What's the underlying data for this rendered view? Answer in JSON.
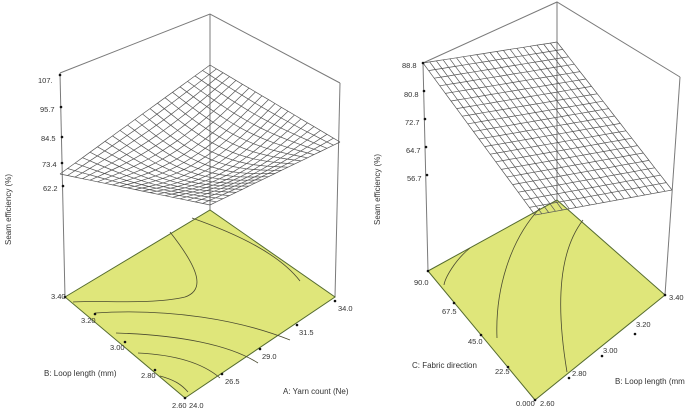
{
  "chart_data": [
    {
      "type": "surface3d",
      "title": "",
      "zlabel": "Seam efficiency (%)",
      "xlabel": "A: Yarn count (Ne)",
      "ylabel": "B: Loop length (mm)",
      "z_ticks": [
        "107.",
        "95.7",
        "84.5",
        "73.4",
        "62.2"
      ],
      "x_ticks": [
        "24.0",
        "26.5",
        "29.0",
        "31.5",
        "34.0"
      ],
      "y_ticks": [
        "2.60",
        "2.80",
        "3.00",
        "3.20",
        "3.40"
      ],
      "zlim": [
        62.2,
        107
      ],
      "surface_corners": {
        "A_low_B_high": 68,
        "A_high_B_high": 107,
        "A_high_B_low": 80,
        "A_low_B_low": 62
      },
      "floor_color": "#dfe67a",
      "contours_on_floor": true
    },
    {
      "type": "surface3d",
      "title": "",
      "zlabel": "Seam efficiency (%)",
      "xlabel": "B: Loop length (mm)",
      "ylabel": "C: Fabric direction",
      "z_ticks": [
        "88.8",
        "80.8",
        "72.7",
        "64.7",
        "56.7"
      ],
      "x_ticks": [
        "2.60",
        "2.80",
        "3.00",
        "3.20",
        "3.40"
      ],
      "y_ticks": [
        "0.000",
        "22.5",
        "45.0",
        "67.5",
        "90.0"
      ],
      "zlim": [
        56.7,
        88.8
      ],
      "surface_corners": {
        "B_low_C_high": 88.8,
        "B_high_C_high": 88.8,
        "B_high_C_low": 56,
        "B_low_C_low": 52
      },
      "floor_color": "#dfe67a",
      "contours_on_floor": true
    }
  ],
  "left": {
    "zlabel": "Seam efficiency (%)",
    "xlabel": "A: Yarn count (Ne)",
    "ylabel": "B: Loop length (mm)",
    "z_ticks": [
      "107.",
      "95.7",
      "84.5",
      "73.4",
      "62.2"
    ],
    "x_ticks": [
      "24.0",
      "26.5",
      "29.0",
      "31.5",
      "34.0"
    ],
    "y_ticks": [
      "2.60",
      "2.80",
      "3.00",
      "3.20",
      "3.40"
    ]
  },
  "right": {
    "zlabel": "Seam efficiency (%)",
    "xlabel": "B: Loop length (mm)",
    "ylabel": "C: Fabric direction",
    "z_ticks": [
      "88.8",
      "80.8",
      "72.7",
      "64.7",
      "56.7"
    ],
    "x_ticks": [
      "2.60",
      "2.80",
      "3.00",
      "3.20",
      "3.40"
    ],
    "y_ticks": [
      "0.000",
      "22.5",
      "45.0",
      "67.5",
      "90.0"
    ]
  }
}
